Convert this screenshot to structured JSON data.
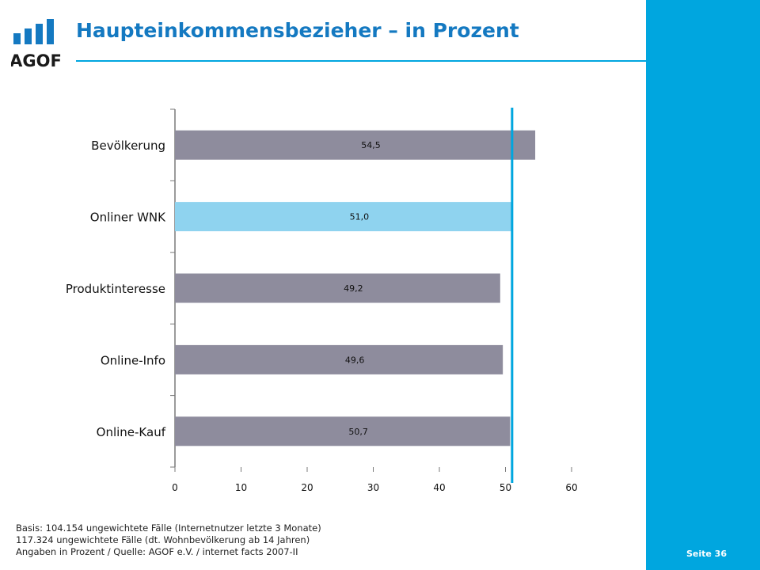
{
  "header": {
    "logo_text": "AGOF",
    "title": "Haupteinkommensbezieher – in Prozent"
  },
  "colors": {
    "brand_blue": "#00a6df",
    "title_blue": "#1479c1",
    "bar_gray": "#8e8c9d",
    "bar_highlight": "#8fd3ef"
  },
  "chart_data": {
    "type": "bar",
    "orientation": "horizontal",
    "categories": [
      "Bevölkerung",
      "Onliner WNK",
      "Produktinteresse",
      "Online-Info",
      "Online-Kauf"
    ],
    "values": [
      54.5,
      51.0,
      49.2,
      49.6,
      50.7
    ],
    "value_labels": [
      "54,5",
      "51,0",
      "49,2",
      "49,6",
      "50,7"
    ],
    "highlight_category": "Onliner WNK",
    "xlim": [
      0,
      60
    ],
    "xticks": [
      0,
      10,
      20,
      30,
      40,
      50,
      60
    ],
    "reference_line": 51.0,
    "grid": false
  },
  "footnote": {
    "line1": "Basis: 104.154 ungewichtete Fälle (Internetnutzer letzte 3 Monate)",
    "line2": "117.324 ungewichtete Fälle (dt. Wohnbevölkerung ab 14 Jahren)",
    "line3": "Angaben in Prozent / Quelle: AGOF e.V. / internet facts 2007-II"
  },
  "page": {
    "label": "Seite 36"
  }
}
